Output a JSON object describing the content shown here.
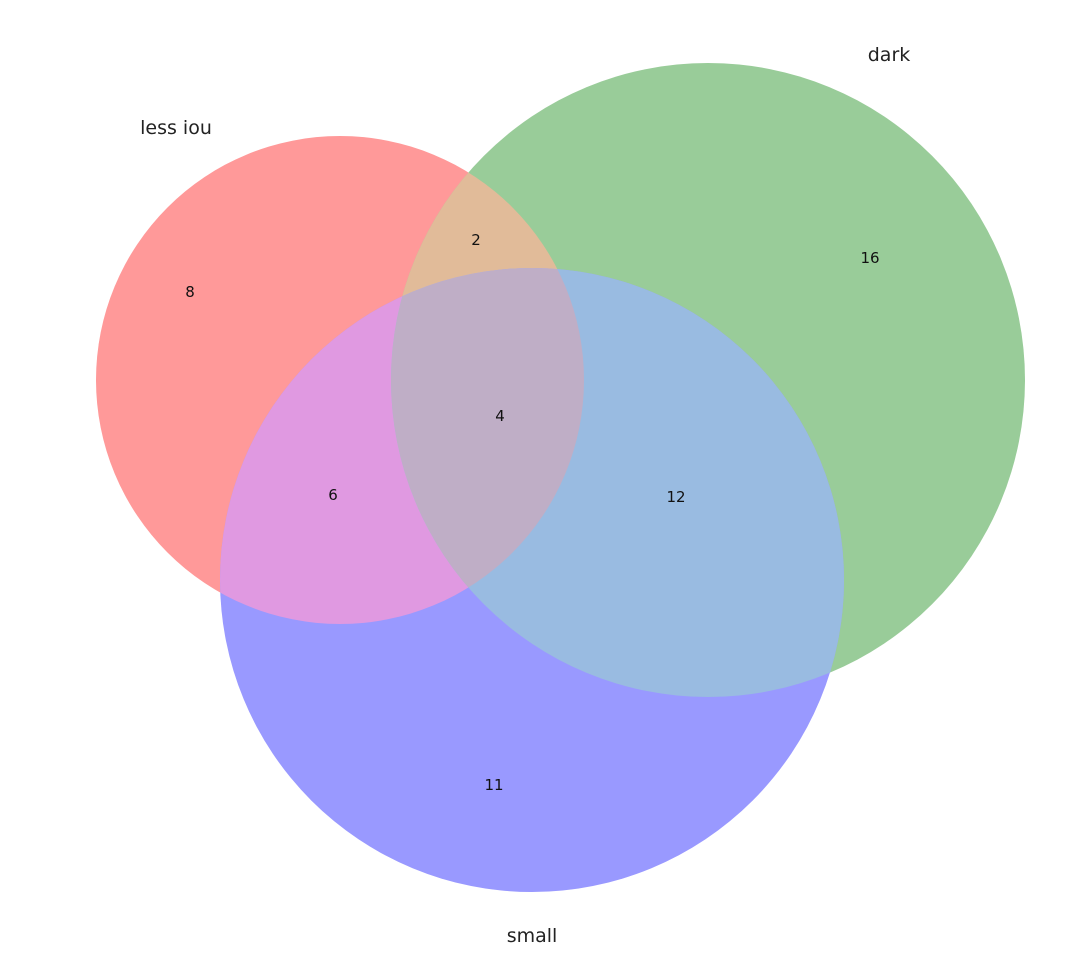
{
  "venn": {
    "sets": [
      {
        "id": "A",
        "label": "less iou",
        "color": "#ff9999"
      },
      {
        "id": "B",
        "label": "dark",
        "color": "#99cc99"
      },
      {
        "id": "C",
        "label": "small",
        "color": "#9999ff"
      }
    ],
    "regions": {
      "A_only": "8",
      "B_only": "16",
      "C_only": "11",
      "AB": "2",
      "AC": "6",
      "BC": "12",
      "ABC": "4"
    },
    "overlap_colors": {
      "AB": "#e1bb99",
      "AC": "#e099e1",
      "BC": "#99bbe1",
      "ABC": "#bfaec6"
    }
  }
}
